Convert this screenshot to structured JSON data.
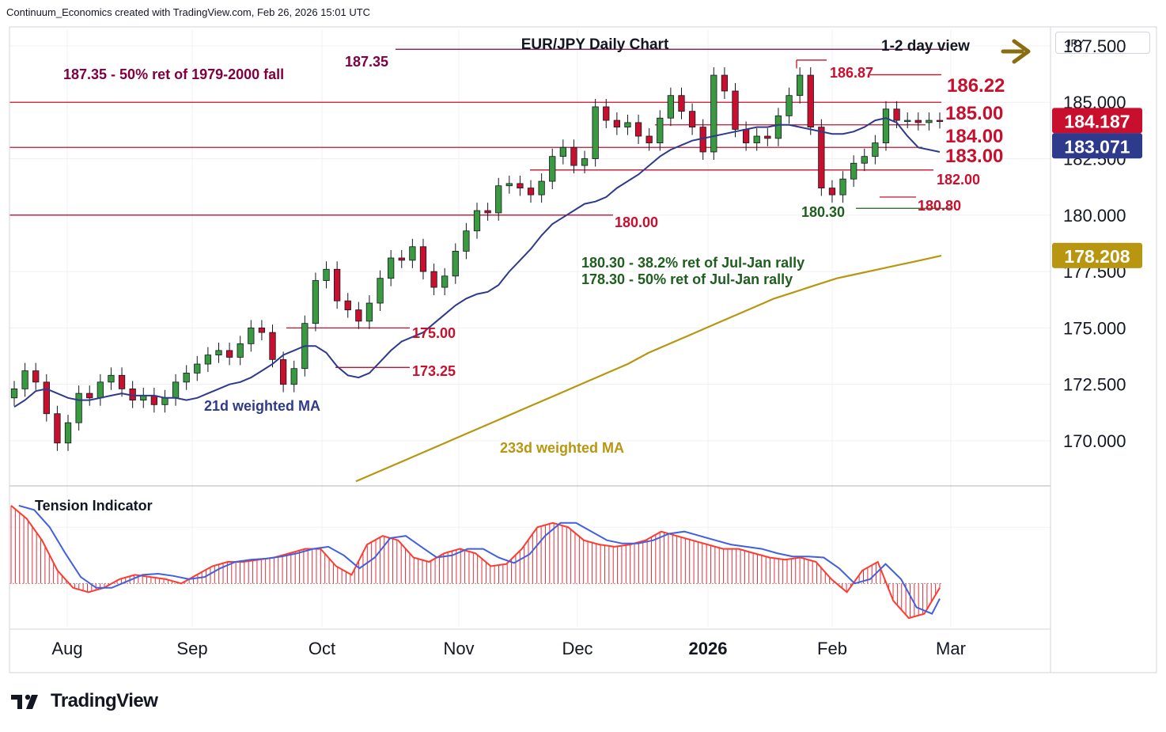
{
  "header": {
    "attribution": "Continuum_Economics created with TradingView.com, Feb 26, 2026 15:01 UTC"
  },
  "brand": {
    "name": "TradingView"
  },
  "currency": "JPY",
  "colors": {
    "up": "#3a9a3f",
    "down": "#c8102e",
    "ma21": "#2e3a8c",
    "ma233": "#b8960f",
    "level": "#c8102e",
    "maroon": "#800040",
    "green_note": "#1e5e1e",
    "grid": "#eef0f3"
  },
  "chart_data": {
    "type": "candlestick",
    "title": "EUR/JPY Daily Chart",
    "view": "1-2 day view",
    "ylim": [
      168.0,
      188.2
    ],
    "y_ticks": [
      170.0,
      172.5,
      175.0,
      177.5,
      180.0,
      182.5,
      185.0,
      187.5
    ],
    "y_tick_labels": [
      "170.000",
      "172.500",
      "175.000",
      "177.500",
      "180.000",
      "182.500",
      "185.000",
      "187.500"
    ],
    "x_labels": [
      "Aug",
      "Sep",
      "Oct",
      "Nov",
      "Dec",
      "2026",
      "Feb",
      "Mar"
    ],
    "badges": [
      {
        "label": "184.187",
        "value": 184.187,
        "color": "#c8102e"
      },
      {
        "label": "183.071",
        "value": 183.071,
        "color": "#2e3a8c"
      },
      {
        "label": "178.208",
        "value": 178.208,
        "color": "#b8960f"
      }
    ],
    "annotations": [
      {
        "text": "187.35 - 50% ret of 1979-2000 fall",
        "color": "#800040"
      },
      {
        "text": "21d weighted MA",
        "color": "#2e3a8c"
      },
      {
        "text": "233d weighted MA",
        "color": "#b8960f"
      },
      {
        "text": "180.30 - 38.2% ret of Jul-Jan rally",
        "color": "#1e5e1e"
      },
      {
        "text": "178.30 - 50% ret of Jul-Jan rally",
        "color": "#1e5e1e"
      }
    ],
    "levels": [
      {
        "value": 187.35,
        "label": "187.35",
        "color": "#800040"
      },
      {
        "value": 186.87,
        "label": "186.87",
        "color": "#c8102e"
      },
      {
        "value": 186.22,
        "label": "186.22",
        "color": "#c8102e"
      },
      {
        "value": 185.0,
        "label": "185.00",
        "color": "#c8102e"
      },
      {
        "value": 184.0,
        "label": "184.00",
        "color": "#c8102e"
      },
      {
        "value": 183.0,
        "label": "183.00",
        "color": "#c8102e"
      },
      {
        "value": 182.0,
        "label": "182.00",
        "color": "#c8102e"
      },
      {
        "value": 180.8,
        "label": "180.80",
        "color": "#c8102e"
      },
      {
        "value": 180.3,
        "label": "180.30",
        "color": "#1e5e1e"
      },
      {
        "value": 180.0,
        "label": "180.00",
        "color": "#c8102e"
      },
      {
        "value": 175.0,
        "label": "175.00",
        "color": "#c8102e"
      },
      {
        "value": 173.25,
        "label": "173.25",
        "color": "#c8102e"
      }
    ],
    "ma21": [
      171.5,
      171.8,
      172.2,
      172.3,
      172.1,
      171.9,
      171.8,
      171.8,
      171.9,
      172.0,
      172.1,
      172.0,
      172.0,
      172.0,
      171.9,
      171.9,
      171.8,
      171.9,
      172.1,
      172.3,
      172.5,
      172.6,
      172.8,
      173.1,
      173.4,
      173.8,
      174.0,
      174.2,
      174.2,
      173.9,
      173.3,
      172.9,
      172.8,
      173.0,
      173.5,
      174.0,
      174.4,
      174.6,
      174.8,
      175.2,
      175.6,
      176.0,
      176.3,
      176.5,
      176.6,
      176.9,
      177.5,
      178.0,
      178.5,
      179.1,
      179.6,
      179.9,
      180.2,
      180.5,
      180.6,
      180.8,
      181.2,
      181.5,
      181.8,
      182.2,
      182.6,
      182.9,
      183.1,
      183.3,
      183.4,
      183.5,
      183.6,
      183.7,
      183.8,
      183.9,
      183.9,
      184.0,
      184.0,
      183.9,
      183.8,
      183.7,
      183.6,
      183.6,
      183.7,
      183.9,
      184.2,
      184.3,
      184.1,
      183.5,
      183.0,
      182.9,
      182.8
    ],
    "ma233": [
      168.2,
      168.6,
      169.0,
      169.4,
      169.8,
      170.2,
      170.6,
      171.0,
      171.4,
      171.8,
      172.2,
      172.6,
      173.0,
      173.4,
      173.9,
      174.3,
      174.7,
      175.1,
      175.5,
      175.9,
      176.3,
      176.6,
      176.9,
      177.2,
      177.4,
      177.6,
      177.8,
      178.0,
      178.2
    ],
    "tension": {
      "ylim": [
        -1.0,
        2.0
      ],
      "histogram": [
        1.8,
        1.5,
        1.0,
        0.3,
        -0.1,
        -0.2,
        -0.1,
        0.1,
        0.2,
        0.15,
        0.1,
        0.0,
        0.2,
        0.4,
        0.5,
        0.5,
        0.55,
        0.6,
        0.7,
        0.8,
        0.8,
        0.4,
        0.2,
        0.9,
        1.1,
        1.0,
        0.6,
        0.5,
        0.7,
        0.8,
        0.7,
        0.4,
        0.45,
        0.8,
        1.3,
        1.4,
        1.3,
        1.0,
        0.9,
        0.85,
        0.9,
        1.0,
        1.2,
        1.1,
        1.0,
        0.9,
        0.8,
        0.8,
        0.7,
        0.6,
        0.55,
        0.6,
        0.5,
        0.1,
        -0.2,
        0.3,
        0.5,
        -0.4,
        -0.8,
        -0.7,
        -0.1
      ]
    }
  }
}
